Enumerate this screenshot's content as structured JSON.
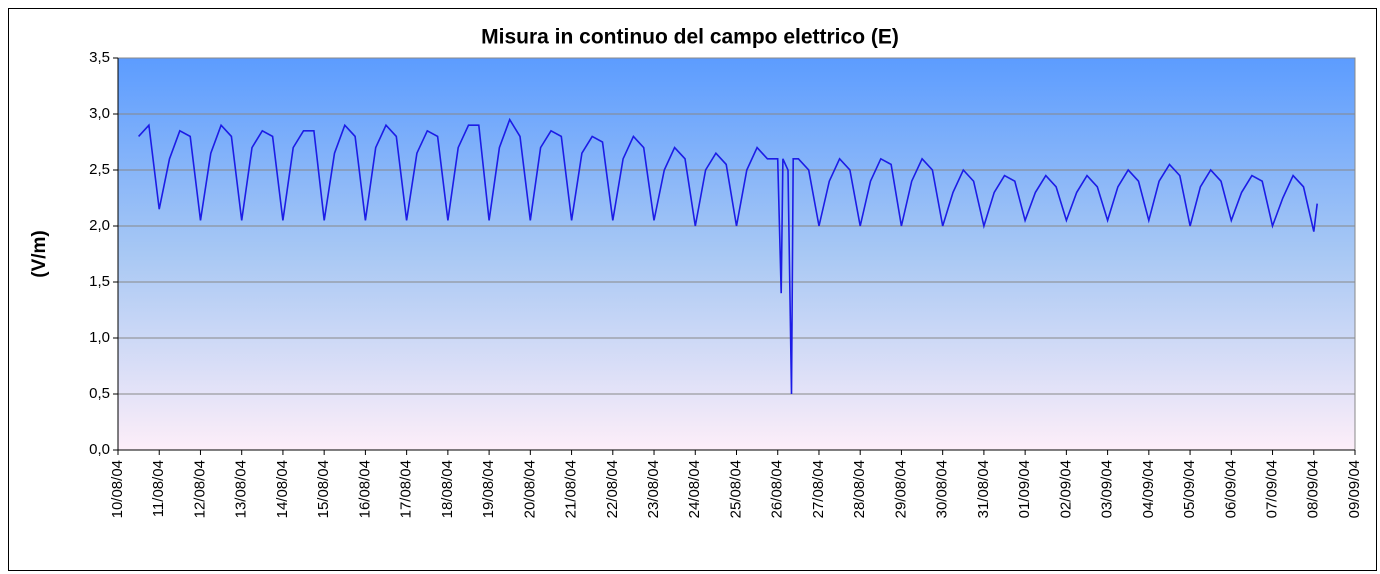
{
  "chart_data": {
    "type": "line",
    "title": "Misura in continuo del campo elettrico (E)",
    "y_label": "(V/m)",
    "color": "#1c1ce6",
    "grid": true,
    "ylim": [
      0,
      3.5
    ],
    "yticks": [
      {
        "value": 0,
        "label": "0,0"
      },
      {
        "value": 0.5,
        "label": "0,5"
      },
      {
        "value": 1,
        "label": "1,0"
      },
      {
        "value": 1.5,
        "label": "1,5"
      },
      {
        "value": 2,
        "label": "2,0"
      },
      {
        "value": 2.5,
        "label": "2,5"
      },
      {
        "value": 3,
        "label": "3,0"
      },
      {
        "value": 3.5,
        "label": "3,5"
      }
    ],
    "xlim": [
      "2004-08-10",
      "2004-09-09"
    ],
    "xticks": [
      {
        "value": "2004-08-10",
        "label": "10/08/04"
      },
      {
        "value": "2004-08-11",
        "label": "11/08/04"
      },
      {
        "value": "2004-08-12",
        "label": "12/08/04"
      },
      {
        "value": "2004-08-13",
        "label": "13/08/04"
      },
      {
        "value": "2004-08-14",
        "label": "14/08/04"
      },
      {
        "value": "2004-08-15",
        "label": "15/08/04"
      },
      {
        "value": "2004-08-16",
        "label": "16/08/04"
      },
      {
        "value": "2004-08-17",
        "label": "17/08/04"
      },
      {
        "value": "2004-08-18",
        "label": "18/08/04"
      },
      {
        "value": "2004-08-19",
        "label": "19/08/04"
      },
      {
        "value": "2004-08-20",
        "label": "20/08/04"
      },
      {
        "value": "2004-08-21",
        "label": "21/08/04"
      },
      {
        "value": "2004-08-22",
        "label": "22/08/04"
      },
      {
        "value": "2004-08-23",
        "label": "23/08/04"
      },
      {
        "value": "2004-08-24",
        "label": "24/08/04"
      },
      {
        "value": "2004-08-25",
        "label": "25/08/04"
      },
      {
        "value": "2004-08-26",
        "label": "26/08/04"
      },
      {
        "value": "2004-08-27",
        "label": "27/08/04"
      },
      {
        "value": "2004-08-28",
        "label": "28/08/04"
      },
      {
        "value": "2004-08-29",
        "label": "29/08/04"
      },
      {
        "value": "2004-08-30",
        "label": "30/08/04"
      },
      {
        "value": "2004-08-31",
        "label": "31/08/04"
      },
      {
        "value": "2004-09-01",
        "label": "01/09/04"
      },
      {
        "value": "2004-09-02",
        "label": "02/09/04"
      },
      {
        "value": "2004-09-03",
        "label": "03/09/04"
      },
      {
        "value": "2004-09-04",
        "label": "04/09/04"
      },
      {
        "value": "2004-09-05",
        "label": "05/09/04"
      },
      {
        "value": "2004-09-06",
        "label": "06/09/04"
      },
      {
        "value": "2004-09-07",
        "label": "07/09/04"
      },
      {
        "value": "2004-09-08",
        "label": "08/09/04"
      },
      {
        "value": "2004-09-09",
        "label": "09/09/04"
      }
    ],
    "x": [
      "2004-08-10 12:00",
      "2004-08-10 18:00",
      "2004-08-11 00:00",
      "2004-08-11 06:00",
      "2004-08-11 12:00",
      "2004-08-11 18:00",
      "2004-08-12 00:00",
      "2004-08-12 06:00",
      "2004-08-12 12:00",
      "2004-08-12 18:00",
      "2004-08-13 00:00",
      "2004-08-13 06:00",
      "2004-08-13 12:00",
      "2004-08-13 18:00",
      "2004-08-14 00:00",
      "2004-08-14 06:00",
      "2004-08-14 12:00",
      "2004-08-14 18:00",
      "2004-08-15 00:00",
      "2004-08-15 06:00",
      "2004-08-15 12:00",
      "2004-08-15 18:00",
      "2004-08-16 00:00",
      "2004-08-16 06:00",
      "2004-08-16 12:00",
      "2004-08-16 18:00",
      "2004-08-17 00:00",
      "2004-08-17 06:00",
      "2004-08-17 12:00",
      "2004-08-17 18:00",
      "2004-08-18 00:00",
      "2004-08-18 06:00",
      "2004-08-18 12:00",
      "2004-08-18 18:00",
      "2004-08-19 00:00",
      "2004-08-19 06:00",
      "2004-08-19 12:00",
      "2004-08-19 18:00",
      "2004-08-20 00:00",
      "2004-08-20 06:00",
      "2004-08-20 12:00",
      "2004-08-20 18:00",
      "2004-08-21 00:00",
      "2004-08-21 06:00",
      "2004-08-21 12:00",
      "2004-08-21 18:00",
      "2004-08-22 00:00",
      "2004-08-22 06:00",
      "2004-08-22 12:00",
      "2004-08-22 18:00",
      "2004-08-23 00:00",
      "2004-08-23 06:00",
      "2004-08-23 12:00",
      "2004-08-23 18:00",
      "2004-08-24 00:00",
      "2004-08-24 06:00",
      "2004-08-24 12:00",
      "2004-08-24 18:00",
      "2004-08-25 00:00",
      "2004-08-25 06:00",
      "2004-08-25 12:00",
      "2004-08-25 18:00",
      "2004-08-26 00:00",
      "2004-08-26 02:00",
      "2004-08-26 03:00",
      "2004-08-26 06:00",
      "2004-08-26 08:00",
      "2004-08-26 09:00",
      "2004-08-26 12:00",
      "2004-08-26 18:00",
      "2004-08-27 00:00",
      "2004-08-27 06:00",
      "2004-08-27 12:00",
      "2004-08-27 18:00",
      "2004-08-28 00:00",
      "2004-08-28 06:00",
      "2004-08-28 12:00",
      "2004-08-28 18:00",
      "2004-08-29 00:00",
      "2004-08-29 06:00",
      "2004-08-29 12:00",
      "2004-08-29 18:00",
      "2004-08-30 00:00",
      "2004-08-30 06:00",
      "2004-08-30 12:00",
      "2004-08-30 18:00",
      "2004-08-31 00:00",
      "2004-08-31 06:00",
      "2004-08-31 12:00",
      "2004-08-31 18:00",
      "2004-09-01 00:00",
      "2004-09-01 06:00",
      "2004-09-01 12:00",
      "2004-09-01 18:00",
      "2004-09-02 00:00",
      "2004-09-02 06:00",
      "2004-09-02 12:00",
      "2004-09-02 18:00",
      "2004-09-03 00:00",
      "2004-09-03 06:00",
      "2004-09-03 12:00",
      "2004-09-03 18:00",
      "2004-09-04 00:00",
      "2004-09-04 06:00",
      "2004-09-04 12:00",
      "2004-09-04 18:00",
      "2004-09-05 00:00",
      "2004-09-05 06:00",
      "2004-09-05 12:00",
      "2004-09-05 18:00",
      "2004-09-06 00:00",
      "2004-09-06 06:00",
      "2004-09-06 12:00",
      "2004-09-06 18:00",
      "2004-09-07 00:00",
      "2004-09-07 06:00",
      "2004-09-07 12:00",
      "2004-09-07 18:00",
      "2004-09-08 00:00",
      "2004-09-08 02:00"
    ],
    "values": [
      2.8,
      2.9,
      2.15,
      2.6,
      2.85,
      2.8,
      2.05,
      2.65,
      2.9,
      2.8,
      2.05,
      2.7,
      2.85,
      2.8,
      2.05,
      2.7,
      2.85,
      2.85,
      2.05,
      2.65,
      2.9,
      2.8,
      2.05,
      2.7,
      2.9,
      2.8,
      2.05,
      2.65,
      2.85,
      2.8,
      2.05,
      2.7,
      2.9,
      2.9,
      2.05,
      2.7,
      2.95,
      2.8,
      2.05,
      2.7,
      2.85,
      2.8,
      2.05,
      2.65,
      2.8,
      2.75,
      2.05,
      2.6,
      2.8,
      2.7,
      2.05,
      2.5,
      2.7,
      2.6,
      2.0,
      2.5,
      2.65,
      2.55,
      2.0,
      2.5,
      2.7,
      2.6,
      2.6,
      1.4,
      2.6,
      2.5,
      0.5,
      2.6,
      2.6,
      2.5,
      2.0,
      2.4,
      2.6,
      2.5,
      2.0,
      2.4,
      2.6,
      2.55,
      2.0,
      2.4,
      2.6,
      2.5,
      2.0,
      2.3,
      2.5,
      2.4,
      2.0,
      2.3,
      2.45,
      2.4,
      2.05,
      2.3,
      2.45,
      2.35,
      2.05,
      2.3,
      2.45,
      2.35,
      2.05,
      2.35,
      2.5,
      2.4,
      2.05,
      2.4,
      2.55,
      2.45,
      2.0,
      2.35,
      2.5,
      2.4,
      2.05,
      2.3,
      2.45,
      2.4,
      2.0,
      2.25,
      2.45,
      2.35,
      1.95,
      2.2
    ]
  }
}
